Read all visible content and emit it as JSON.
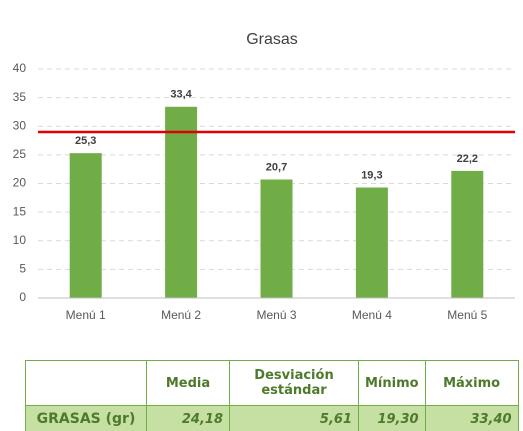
{
  "chart_data": {
    "type": "bar",
    "title": "Grasas",
    "categories": [
      "Menú 1",
      "Menú 2",
      "Menú 3",
      "Menú 4",
      "Menú 5"
    ],
    "values": [
      25.3,
      33.4,
      20.7,
      19.3,
      22.2
    ],
    "value_labels": [
      "25,3",
      "33,4",
      "20,7",
      "19,3",
      "22,2"
    ],
    "color": "#70ad47",
    "ylim": [
      0,
      40
    ],
    "yticks": [
      0,
      5,
      10,
      15,
      20,
      25,
      30,
      35,
      40
    ],
    "grid": true,
    "reference_line": {
      "value": 29,
      "color": "#e00000"
    }
  },
  "table": {
    "header": [
      "Media",
      "Desviación estándar",
      "Mínimo",
      "Máximo"
    ],
    "rows": [
      [
        "GRASAS (gr)",
        "24,18",
        "5,61",
        "19,30",
        "33,40"
      ]
    ]
  }
}
